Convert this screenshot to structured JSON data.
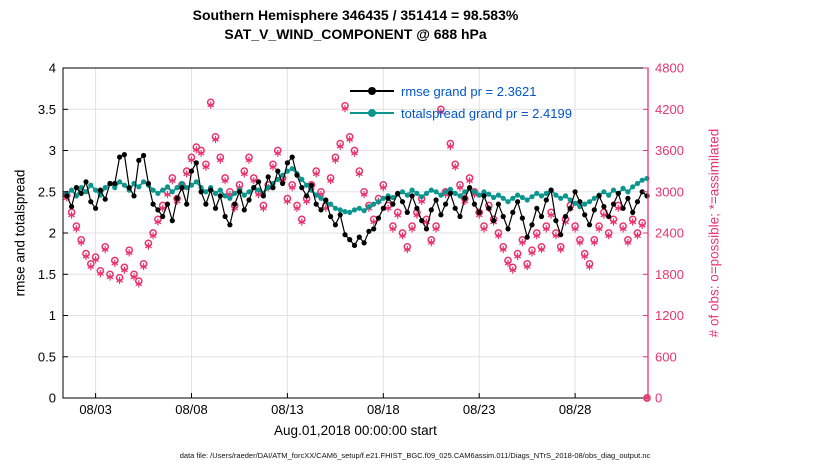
{
  "title": {
    "line1": "Southern Hemisphere 346435 / 351414 = 98.583%",
    "line2": "SAT_V_WIND_COMPONENT @ 688 hPa"
  },
  "axes": {
    "x_label": "Aug.01,2018 00:00:00 start",
    "y_left_label": "rmse and totalspread",
    "y_right_label": "# of obs: o=possible; *=assimilated"
  },
  "legend": {
    "entries": [
      {
        "label": "rmse grand pr = 2.3621",
        "series": "rmse"
      },
      {
        "label": "totalspread grand pr = 2.4199",
        "series": "totalspread"
      }
    ]
  },
  "footer": "data file: /Users/raeder/DAI/ATM_forcXX/CAM6_setup/f.e21.FHIST_BGC.f09_025.CAM6assim.011/Diags_NTrS_2018-08/obs_diag_output.nc",
  "colors": {
    "rmse": "#000000",
    "totalspread": "#0b968f",
    "obs": "#e8356f",
    "legend_text": "#0055cc",
    "grid": "#e2e2e2",
    "axis": "#000000"
  },
  "chart_data": {
    "type": "line",
    "title": "Southern Hemisphere 346435 / 351414 = 98.583% | SAT_V_WIND_COMPONENT @ 688 hPa",
    "x_axis": {
      "unit": "days since Aug.01,2018 00:00:00",
      "min": 0.3,
      "max": 30.8,
      "ticks": [
        2,
        7,
        12,
        17,
        22,
        27
      ],
      "tick_labels": [
        "08/03",
        "08/08",
        "08/13",
        "08/18",
        "08/23",
        "08/28"
      ]
    },
    "y_left": {
      "label": "rmse and totalspread",
      "min": 0,
      "max": 4,
      "ticks": [
        0,
        0.5,
        1,
        1.5,
        2,
        2.5,
        3,
        3.5,
        4
      ],
      "tick_labels": [
        "0",
        "0.5",
        "1",
        "1.5",
        "2",
        "2.5",
        "3",
        "3.5",
        "4"
      ]
    },
    "y_right": {
      "label": "# of obs: o=possible; *=assimilated",
      "min": 0,
      "max": 4800,
      "ticks": [
        0,
        600,
        1200,
        1800,
        2400,
        3000,
        3600,
        4200,
        4800
      ],
      "tick_labels": [
        "0",
        "600",
        "1200",
        "1800",
        "2400",
        "3000",
        "3600",
        "4200",
        "4800"
      ]
    },
    "x_start": 0.5,
    "x_step": 0.25,
    "series": [
      {
        "name": "rmse",
        "axis": "left",
        "marker": "filled-circle",
        "color_key": "rmse",
        "grand_mean": 2.3621,
        "values": [
          2.45,
          2.32,
          2.55,
          2.48,
          2.62,
          2.38,
          2.3,
          2.52,
          2.41,
          2.6,
          2.6,
          2.92,
          2.95,
          2.55,
          2.45,
          2.88,
          2.94,
          2.6,
          2.35,
          2.28,
          2.2,
          2.35,
          2.15,
          2.42,
          2.55,
          2.35,
          2.75,
          2.85,
          2.5,
          2.35,
          2.52,
          2.3,
          2.45,
          2.2,
          2.1,
          2.35,
          2.5,
          2.28,
          2.4,
          2.55,
          2.62,
          2.45,
          2.68,
          2.55,
          2.75,
          2.6,
          2.85,
          2.92,
          2.7,
          2.55,
          2.45,
          2.58,
          2.35,
          2.28,
          2.4,
          2.2,
          2.1,
          2.22,
          1.98,
          1.92,
          1.85,
          1.95,
          1.88,
          2.02,
          2.05,
          2.18,
          2.3,
          2.42,
          2.35,
          2.48,
          2.38,
          2.25,
          2.45,
          2.3,
          2.15,
          2.05,
          2.28,
          2.4,
          2.22,
          2.35,
          2.48,
          2.3,
          2.2,
          2.42,
          2.55,
          2.35,
          2.25,
          2.45,
          2.3,
          2.15,
          2.35,
          2.2,
          2.05,
          2.25,
          2.38,
          2.18,
          1.95,
          2.1,
          2.3,
          2.2,
          2.4,
          2.52,
          2.15,
          1.98,
          2.2,
          2.3,
          2.5,
          2.38,
          2.22,
          2.1,
          2.28,
          2.45,
          2.32,
          2.2,
          2.35,
          2.48,
          2.3,
          2.42,
          2.25,
          2.38,
          2.5,
          2.45
        ]
      },
      {
        "name": "totalspread",
        "axis": "left",
        "marker": "filled-circle",
        "color_key": "totalspread",
        "grand_mean": 2.4199,
        "values": [
          2.48,
          2.52,
          2.45,
          2.55,
          2.5,
          2.58,
          2.52,
          2.46,
          2.55,
          2.6,
          2.55,
          2.62,
          2.58,
          2.52,
          2.6,
          2.56,
          2.62,
          2.58,
          2.52,
          2.48,
          2.52,
          2.56,
          2.5,
          2.55,
          2.6,
          2.55,
          2.58,
          2.62,
          2.55,
          2.5,
          2.55,
          2.48,
          2.52,
          2.45,
          2.42,
          2.48,
          2.52,
          2.46,
          2.5,
          2.55,
          2.52,
          2.48,
          2.55,
          2.6,
          2.65,
          2.7,
          2.75,
          2.78,
          2.72,
          2.65,
          2.58,
          2.52,
          2.46,
          2.42,
          2.38,
          2.35,
          2.3,
          2.28,
          2.26,
          2.25,
          2.28,
          2.3,
          2.27,
          2.32,
          2.35,
          2.38,
          2.42,
          2.45,
          2.43,
          2.47,
          2.5,
          2.46,
          2.52,
          2.48,
          2.44,
          2.48,
          2.52,
          2.5,
          2.46,
          2.5,
          2.53,
          2.48,
          2.45,
          2.5,
          2.54,
          2.5,
          2.46,
          2.5,
          2.47,
          2.43,
          2.46,
          2.42,
          2.38,
          2.42,
          2.46,
          2.43,
          2.4,
          2.44,
          2.48,
          2.45,
          2.48,
          2.52,
          2.46,
          2.42,
          2.45,
          2.4,
          2.36,
          2.32,
          2.35,
          2.38,
          2.42,
          2.46,
          2.5,
          2.46,
          2.52,
          2.48,
          2.54,
          2.5,
          2.56,
          2.6,
          2.64,
          2.66
        ]
      },
      {
        "name": "obs_possible",
        "axis": "right",
        "marker": "open-circle",
        "color_key": "obs",
        "total": 351414,
        "values": [
          2950,
          2700,
          2500,
          2300,
          2100,
          1950,
          2050,
          1850,
          2200,
          1800,
          2000,
          1750,
          1900,
          2150,
          1800,
          1700,
          1950,
          2250,
          2400,
          2600,
          2800,
          3000,
          3200,
          2900,
          3100,
          3300,
          3500,
          3650,
          3600,
          3400,
          4300,
          3800,
          3500,
          3200,
          3000,
          2800,
          3100,
          3300,
          3500,
          3200,
          3000,
          2800,
          3100,
          3400,
          3600,
          3200,
          2900,
          3100,
          2800,
          2600,
          2900,
          3100,
          3300,
          3000,
          2800,
          3200,
          3500,
          3700,
          4250,
          3800,
          3600,
          3300,
          3000,
          2800,
          2600,
          2900,
          3100,
          2800,
          2500,
          2700,
          2400,
          2200,
          2500,
          2700,
          2900,
          2600,
          2300,
          2500,
          4200,
          3000,
          3700,
          3400,
          3100,
          2900,
          3200,
          3000,
          2700,
          2500,
          2800,
          2600,
          2400,
          2200,
          2000,
          1900,
          2100,
          2300,
          1950,
          2150,
          2400,
          2200,
          2500,
          2700,
          2400,
          2200,
          2600,
          2800,
          2500,
          2300,
          2100,
          1950,
          2300,
          2500,
          2700,
          2400,
          2600,
          2800,
          2500,
          2300,
          2600,
          2400,
          2550,
          0
        ]
      },
      {
        "name": "obs_assimilated",
        "axis": "right",
        "marker": "asterisk",
        "color_key": "obs",
        "total": 346435,
        "values": [
          2910,
          2660,
          2460,
          2260,
          2060,
          1910,
          2010,
          1810,
          2160,
          1760,
          1960,
          1710,
          1860,
          2110,
          1760,
          1660,
          1910,
          2210,
          2360,
          2560,
          2760,
          2960,
          3160,
          2860,
          3060,
          3260,
          3460,
          3610,
          3560,
          3360,
          4260,
          3760,
          3460,
          3160,
          2960,
          2760,
          3060,
          3260,
          3460,
          3160,
          2960,
          2760,
          3060,
          3360,
          3560,
          3160,
          2860,
          3060,
          2760,
          2560,
          2860,
          3060,
          3260,
          2960,
          2760,
          3160,
          3460,
          3660,
          4210,
          3760,
          3560,
          3260,
          2960,
          2760,
          2560,
          2860,
          3060,
          2760,
          2460,
          2660,
          2360,
          2160,
          2460,
          2660,
          2860,
          2560,
          2260,
          2460,
          4160,
          2960,
          3660,
          3360,
          3060,
          2860,
          3160,
          2960,
          2660,
          2460,
          2760,
          2560,
          2360,
          2160,
          1960,
          1860,
          2060,
          2260,
          1910,
          2110,
          2360,
          2160,
          2460,
          2660,
          2360,
          2160,
          2560,
          2760,
          2460,
          2260,
          2060,
          1910,
          2260,
          2460,
          2660,
          2360,
          2560,
          2760,
          2460,
          2260,
          2560,
          2360,
          2510,
          0
        ]
      }
    ]
  }
}
